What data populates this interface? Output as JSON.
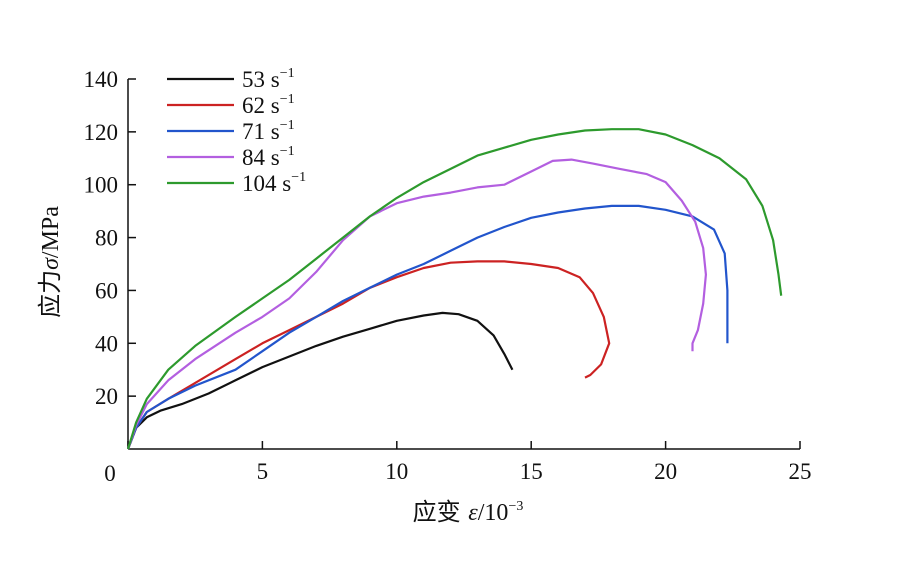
{
  "chart_data": {
    "type": "line",
    "xlabel": {
      "prefix": "应变 ",
      "symbol": "ε",
      "unit": "/10",
      "exp": "−3"
    },
    "ylabel": {
      "prefix": "应力",
      "symbol": "σ",
      "unit": "/MPa"
    },
    "xlim": [
      0,
      25
    ],
    "ylim": [
      0,
      140
    ],
    "xticks": [
      0,
      5,
      10,
      15,
      20,
      25
    ],
    "yticks": [
      20,
      40,
      60,
      80,
      100,
      120,
      140
    ],
    "x_origin_label": "0",
    "legend": {
      "position": "top-left"
    },
    "series": [
      {
        "name": "53 s",
        "exp": "−1",
        "color": "#111111",
        "points": [
          [
            0,
            0
          ],
          [
            0.3,
            8
          ],
          [
            0.7,
            12
          ],
          [
            1.2,
            14.5
          ],
          [
            2,
            17
          ],
          [
            3,
            21
          ],
          [
            4,
            26
          ],
          [
            5,
            31
          ],
          [
            6,
            35
          ],
          [
            7,
            39
          ],
          [
            8,
            42.5
          ],
          [
            9,
            45.5
          ],
          [
            10,
            48.5
          ],
          [
            11,
            50.5
          ],
          [
            11.7,
            51.5
          ],
          [
            12.3,
            51
          ],
          [
            13,
            48.5
          ],
          [
            13.6,
            43
          ],
          [
            14,
            36
          ],
          [
            14.3,
            30
          ]
        ]
      },
      {
        "name": "62 s",
        "exp": "−1",
        "color": "#cc2222",
        "points": [
          [
            0,
            0
          ],
          [
            0.3,
            8
          ],
          [
            0.7,
            14
          ],
          [
            1.5,
            19
          ],
          [
            2.5,
            25
          ],
          [
            4,
            34
          ],
          [
            5,
            40
          ],
          [
            6,
            45
          ],
          [
            7,
            50
          ],
          [
            8,
            55
          ],
          [
            9,
            61
          ],
          [
            10,
            65
          ],
          [
            11,
            68.5
          ],
          [
            12,
            70.5
          ],
          [
            13,
            71
          ],
          [
            14,
            71
          ],
          [
            15,
            70
          ],
          [
            16,
            68.5
          ],
          [
            16.8,
            65
          ],
          [
            17.3,
            59
          ],
          [
            17.7,
            50
          ],
          [
            17.9,
            40
          ],
          [
            17.6,
            32
          ],
          [
            17.2,
            28
          ],
          [
            17,
            27
          ]
        ]
      },
      {
        "name": "71 s",
        "exp": "−1",
        "color": "#2255cc",
        "points": [
          [
            0,
            0
          ],
          [
            0.3,
            8
          ],
          [
            0.7,
            14
          ],
          [
            1.5,
            19
          ],
          [
            2.5,
            24
          ],
          [
            4,
            30
          ],
          [
            5,
            37
          ],
          [
            6,
            44
          ],
          [
            7,
            50
          ],
          [
            8,
            56
          ],
          [
            9,
            61
          ],
          [
            10,
            66
          ],
          [
            11,
            70
          ],
          [
            12,
            75
          ],
          [
            13,
            80
          ],
          [
            14,
            84
          ],
          [
            15,
            87.5
          ],
          [
            16,
            89.5
          ],
          [
            17,
            91
          ],
          [
            18,
            92
          ],
          [
            19,
            92
          ],
          [
            20,
            90.5
          ],
          [
            21,
            88
          ],
          [
            21.8,
            83
          ],
          [
            22.2,
            74
          ],
          [
            22.3,
            60
          ],
          [
            22.3,
            48
          ],
          [
            22.3,
            40
          ]
        ]
      },
      {
        "name": "84 s",
        "exp": "−1",
        "color": "#b35fe0",
        "points": [
          [
            0,
            0
          ],
          [
            0.3,
            9
          ],
          [
            0.7,
            17
          ],
          [
            1.5,
            26
          ],
          [
            2.5,
            34
          ],
          [
            4,
            44
          ],
          [
            5,
            50
          ],
          [
            6,
            57
          ],
          [
            7,
            67
          ],
          [
            8,
            79
          ],
          [
            9,
            88
          ],
          [
            10,
            93
          ],
          [
            11,
            95.5
          ],
          [
            12,
            97
          ],
          [
            13,
            99
          ],
          [
            14,
            100
          ],
          [
            15,
            105
          ],
          [
            15.8,
            109
          ],
          [
            16.5,
            109.5
          ],
          [
            17.3,
            108
          ],
          [
            18.3,
            106
          ],
          [
            19.3,
            104
          ],
          [
            20,
            101
          ],
          [
            20.6,
            94
          ],
          [
            21.1,
            86
          ],
          [
            21.4,
            76
          ],
          [
            21.5,
            66
          ],
          [
            21.4,
            55
          ],
          [
            21.2,
            45
          ],
          [
            21,
            40
          ],
          [
            21,
            37
          ]
        ]
      },
      {
        "name": "104 s",
        "exp": "−1",
        "color": "#2d9a2d",
        "points": [
          [
            0,
            0
          ],
          [
            0.3,
            10
          ],
          [
            0.7,
            19
          ],
          [
            1.5,
            30
          ],
          [
            2.5,
            39
          ],
          [
            4,
            50
          ],
          [
            5,
            57
          ],
          [
            6,
            64
          ],
          [
            7,
            72
          ],
          [
            8,
            80
          ],
          [
            9,
            88
          ],
          [
            10,
            95
          ],
          [
            11,
            101
          ],
          [
            12,
            106
          ],
          [
            13,
            111
          ],
          [
            14,
            114
          ],
          [
            15,
            117
          ],
          [
            16,
            119
          ],
          [
            17,
            120.5
          ],
          [
            18,
            121
          ],
          [
            19,
            121
          ],
          [
            20,
            119
          ],
          [
            21,
            115
          ],
          [
            22,
            110
          ],
          [
            23,
            102
          ],
          [
            23.6,
            92
          ],
          [
            24,
            79
          ],
          [
            24.2,
            66
          ],
          [
            24.3,
            58
          ]
        ]
      }
    ]
  }
}
